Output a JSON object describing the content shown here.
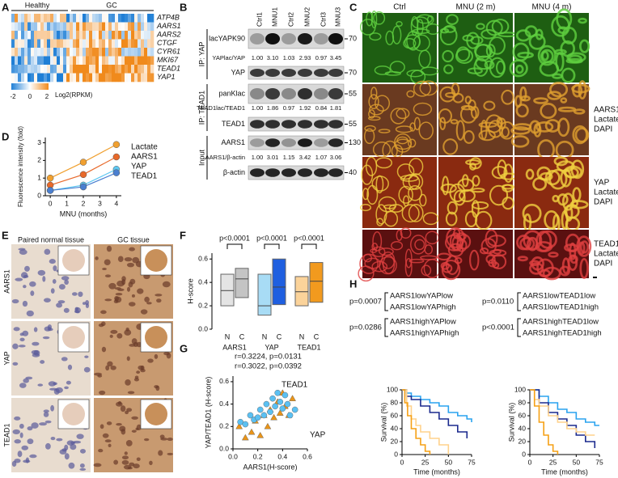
{
  "panel_labels": [
    "A",
    "B",
    "C",
    "D",
    "E",
    "F",
    "G",
    "H"
  ],
  "heatmap": {
    "groups": [
      "Healthy",
      "GC"
    ],
    "genes": [
      "ATP4B",
      "AARS1",
      "AARS2",
      "CTGF",
      "CYR61",
      "MKI67",
      "TEAD1",
      "YAP1"
    ],
    "colorbar_ticks": [
      -2,
      0,
      2
    ],
    "colorbar_label": "Log2(RPKM)"
  },
  "western_blot": {
    "lanes": [
      "Ctrl1",
      "MNU1",
      "Ctrl2",
      "MNU2",
      "Ctrl3",
      "MNU3"
    ],
    "groups": [
      "IP: YAP",
      "IP: TEAD1",
      "Input"
    ],
    "blots": [
      {
        "label": "lacYAPK90",
        "mw": "70"
      },
      {
        "label": "YAP",
        "mw": "70"
      },
      {
        "label": "panKlac",
        "mw": "55"
      },
      {
        "label": "TEAD1",
        "mw": "55"
      },
      {
        "label": "AARS1",
        "mw": "130"
      },
      {
        "label": "β-actin",
        "mw": "40"
      }
    ],
    "ratios": [
      {
        "label": "YAPlac/YAP",
        "values": [
          "1.00",
          "3.10",
          "1.03",
          "2.93",
          "0.97",
          "3.45"
        ]
      },
      {
        "label": "TEAD1lac/TEAD1",
        "values": [
          "1.00",
          "1.86",
          "0.97",
          "1.92",
          "0.84",
          "1.81"
        ]
      },
      {
        "label": "AARS1/β-actin",
        "values": [
          "1.00",
          "3.01",
          "1.15",
          "3.42",
          "1.07",
          "3.06"
        ]
      }
    ]
  },
  "microscopy": {
    "columns": [
      "Ctrl",
      "MNU (2 m)",
      "MNU (4 m)"
    ],
    "legends": [
      [
        "AARS1",
        "Lactate",
        "DAPI"
      ],
      [
        "YAP",
        "Lactate",
        "DAPI"
      ],
      [
        "TEAD1",
        "Lactate",
        "DAPI"
      ]
    ]
  },
  "ihc": {
    "columns": [
      "Paired normal tissue",
      "GC tissue"
    ],
    "rows": [
      "AARS1",
      "YAP",
      "TEAD1"
    ]
  },
  "chart_data": [
    {
      "type": "line",
      "y_label": "Fluorescence intensity (fold)",
      "x_label": "MNU (months)",
      "xlim": [
        -0.3,
        4.3
      ],
      "xticks": [
        0,
        1,
        2,
        3,
        4
      ],
      "ylim": [
        0,
        3.3
      ],
      "yticks": [
        0,
        1,
        2,
        3
      ],
      "series": [
        {
          "name": "Lactate",
          "color": "#f0a030",
          "x": [
            0,
            2,
            4
          ],
          "values": [
            1.0,
            1.9,
            2.9
          ]
        },
        {
          "name": "AARS1",
          "color": "#e8692a",
          "x": [
            0,
            2,
            4
          ],
          "values": [
            0.6,
            1.2,
            2.2
          ]
        },
        {
          "name": "YAP",
          "color": "#5ec8f2",
          "x": [
            0,
            2,
            4
          ],
          "values": [
            0.3,
            0.6,
            1.5
          ]
        },
        {
          "name": "TEAD1",
          "color": "#4a7fd0",
          "x": [
            0,
            2,
            4
          ],
          "values": [
            0.3,
            0.5,
            1.3
          ]
        }
      ]
    },
    {
      "type": "box",
      "y_label": "H-score",
      "categories": [
        "AARS1",
        "YAP",
        "TEAD1"
      ],
      "annotations": [
        "p<0.0001",
        "p<0.0001",
        "p<0.0001"
      ],
      "ylim": [
        0,
        0.65
      ],
      "yticks": [
        {
          "value": 0,
          "label": "0.0"
        },
        {
          "value": 0.2,
          "label": "0.2"
        },
        {
          "value": 0.4,
          "label": "0.4"
        },
        {
          "value": 0.6,
          "label": "0.6"
        }
      ],
      "series": [
        {
          "name": "N",
          "colors": [
            "#e4e4e4",
            "#a8dcf5",
            "#fbd39a"
          ],
          "q1": [
            0.2,
            0.12,
            0.2
          ],
          "median": [
            0.33,
            0.2,
            0.32
          ],
          "q3": [
            0.47,
            0.47,
            0.45
          ]
        },
        {
          "name": "C",
          "colors": [
            "#c4c4c4",
            "#1f5fe0",
            "#f29a1e"
          ],
          "q1": [
            0.27,
            0.21,
            0.23
          ],
          "median": [
            0.43,
            0.36,
            0.41
          ],
          "q3": [
            0.52,
            0.6,
            0.57
          ]
        }
      ]
    },
    {
      "type": "scatter",
      "x_label": "AARS1(H-score)",
      "y_label": "YAP/TEAD1 (H-score)",
      "annotations": [
        {
          "text": "r=0.3224, p=0.0131",
          "color": "#1e8ff0"
        },
        {
          "text": "r=0.3022, p=0.0392",
          "color": "#f09a1a"
        }
      ],
      "xlim": [
        0,
        0.6
      ],
      "xticks": [
        {
          "value": 0,
          "label": "0.0"
        },
        {
          "value": 0.2,
          "label": "0.2"
        },
        {
          "value": 0.4,
          "label": "0.4"
        },
        {
          "value": 0.6,
          "label": "0.6"
        }
      ],
      "ylim": [
        0,
        0.65
      ],
      "yticks": [
        {
          "value": 0,
          "label": "0.0"
        },
        {
          "value": 0.2,
          "label": "0.2"
        },
        {
          "value": 0.4,
          "label": "0.4"
        },
        {
          "value": 0.6,
          "label": "0.6"
        }
      ],
      "series": [
        {
          "name": "TEAD1",
          "color": "#e8941a",
          "marker": "triangle",
          "x": [
            0.05,
            0.1,
            0.15,
            0.18,
            0.22,
            0.25,
            0.28,
            0.3,
            0.33,
            0.36,
            0.38,
            0.4,
            0.42,
            0.45,
            0.48
          ],
          "values": [
            0.2,
            0.1,
            0.15,
            0.25,
            0.12,
            0.3,
            0.2,
            0.35,
            0.28,
            0.42,
            0.32,
            0.5,
            0.38,
            0.3,
            0.45
          ]
        },
        {
          "name": "YAP",
          "color": "#5bc0f2",
          "marker": "circle",
          "x": [
            0.06,
            0.1,
            0.14,
            0.17,
            0.2,
            0.22,
            0.25,
            0.27,
            0.3,
            0.32,
            0.34,
            0.36,
            0.38,
            0.4,
            0.42,
            0.44,
            0.46,
            0.5
          ],
          "values": [
            0.24,
            0.22,
            0.3,
            0.26,
            0.28,
            0.35,
            0.3,
            0.4,
            0.33,
            0.45,
            0.38,
            0.5,
            0.42,
            0.36,
            0.48,
            0.4,
            0.3,
            0.35
          ]
        }
      ]
    },
    {
      "type": "step",
      "y_label": "Survival (%)",
      "x_label": "Time (months)",
      "annotations": [
        "p=0.0007",
        "p=0.0286"
      ],
      "xlim": [
        0,
        75
      ],
      "xticks": [
        0,
        25,
        50,
        75
      ],
      "ylim": [
        0,
        100
      ],
      "yticks": [
        0,
        20,
        40,
        60,
        80,
        100
      ],
      "series": [
        {
          "name": "AARS1lowYAPlow",
          "color": "#2aa3ef",
          "x": [
            0,
            5,
            10,
            20,
            30,
            40,
            50,
            60,
            70,
            75
          ],
          "values": [
            100,
            95,
            90,
            85,
            80,
            75,
            65,
            60,
            55,
            50
          ]
        },
        {
          "name": "AARS1lowYAPhigh",
          "color": "#1b2a8e",
          "x": [
            0,
            5,
            10,
            20,
            30,
            40,
            50,
            60,
            70
          ],
          "values": [
            100,
            90,
            85,
            75,
            65,
            55,
            45,
            35,
            25
          ]
        },
        {
          "name": "AARS1highYAPlow",
          "color": "#ffd28c",
          "x": [
            0,
            5,
            10,
            15,
            20,
            30,
            40,
            50
          ],
          "values": [
            100,
            75,
            55,
            45,
            35,
            25,
            15,
            0
          ]
        },
        {
          "name": "AARS1highYAPhigh",
          "color": "#f5a015",
          "x": [
            0,
            3,
            6,
            10,
            15,
            20,
            25,
            30
          ],
          "values": [
            100,
            80,
            60,
            40,
            25,
            15,
            5,
            0
          ]
        }
      ]
    },
    {
      "type": "step",
      "y_label": "Survival (%)",
      "x_label": "Time (months)",
      "annotations": [
        "p=0.0110",
        "p<0.0001"
      ],
      "xlim": [
        0,
        75
      ],
      "xticks": [
        0,
        25,
        50,
        75
      ],
      "ylim": [
        0,
        100
      ],
      "yticks": [
        0,
        20,
        40,
        60,
        80,
        100
      ],
      "series": [
        {
          "name": "AARS1lowTEAD1low",
          "color": "#2aa3ef",
          "x": [
            0,
            10,
            20,
            30,
            40,
            50,
            60,
            70,
            75
          ],
          "values": [
            100,
            90,
            80,
            70,
            65,
            55,
            50,
            45,
            45
          ]
        },
        {
          "name": "AARS1lowTEAD1high",
          "color": "#1b2a8e",
          "x": [
            0,
            10,
            20,
            30,
            40,
            50,
            60,
            70
          ],
          "values": [
            100,
            80,
            65,
            55,
            45,
            30,
            20,
            10
          ]
        },
        {
          "name": "AARS1highTEAD1low",
          "color": "#ffd28c",
          "x": [
            0,
            5,
            10,
            20,
            30,
            40,
            50,
            60,
            70
          ],
          "values": [
            100,
            85,
            75,
            60,
            50,
            40,
            35,
            30,
            30
          ]
        },
        {
          "name": "AARS1highTEAD1high",
          "color": "#f5a015",
          "x": [
            0,
            5,
            10,
            15,
            20,
            25,
            30
          ],
          "values": [
            100,
            75,
            50,
            30,
            15,
            5,
            0
          ]
        }
      ]
    }
  ]
}
